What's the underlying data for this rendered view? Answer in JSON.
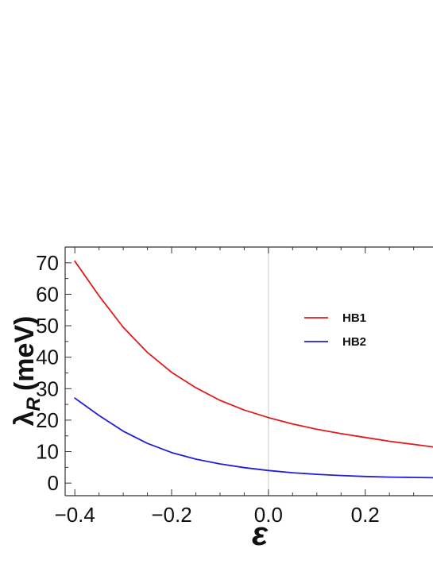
{
  "chart_data": {
    "type": "line",
    "xlabel": "ε",
    "ylabel_main": "λ",
    "ylabel_sub": "R",
    "ylabel_unit": "(meV)",
    "xlim": [
      -0.42,
      0.34
    ],
    "ylim": [
      -4,
      75
    ],
    "xticks": [
      {
        "value": -0.4,
        "label": "−0.4"
      },
      {
        "value": -0.2,
        "label": "−0.2"
      },
      {
        "value": 0.0,
        "label": "0.0"
      },
      {
        "value": 0.2,
        "label": "0.2"
      }
    ],
    "yticks": [
      {
        "value": 0,
        "label": "0"
      },
      {
        "value": 10,
        "label": "10"
      },
      {
        "value": 20,
        "label": "20"
      },
      {
        "value": 30,
        "label": "30"
      },
      {
        "value": 40,
        "label": "40"
      },
      {
        "value": 50,
        "label": "50"
      },
      {
        "value": 60,
        "label": "60"
      },
      {
        "value": 70,
        "label": "70"
      }
    ],
    "vertical_reference_line_x": 0.0,
    "legend_position": "upper-right inside",
    "series": [
      {
        "name": "HB1",
        "color": "#e31a1c",
        "x": [
          -0.4,
          -0.35,
          -0.3,
          -0.25,
          -0.2,
          -0.15,
          -0.1,
          -0.05,
          0.0,
          0.05,
          0.1,
          0.15,
          0.2,
          0.25,
          0.3,
          0.34
        ],
        "y": [
          70.5,
          59.5,
          49.5,
          41.5,
          35.2,
          30.3,
          26.3,
          23.2,
          20.8,
          18.8,
          17.1,
          15.7,
          14.5,
          13.3,
          12.3,
          11.5
        ]
      },
      {
        "name": "HB2",
        "color": "#1f1fd6",
        "x": [
          -0.4,
          -0.35,
          -0.3,
          -0.25,
          -0.2,
          -0.15,
          -0.1,
          -0.05,
          0.0,
          0.05,
          0.1,
          0.15,
          0.2,
          0.25,
          0.3,
          0.34
        ],
        "y": [
          27.0,
          21.5,
          16.5,
          12.6,
          9.7,
          7.6,
          6.1,
          4.9,
          4.0,
          3.3,
          2.8,
          2.4,
          2.1,
          1.9,
          1.8,
          1.7
        ]
      }
    ]
  }
}
